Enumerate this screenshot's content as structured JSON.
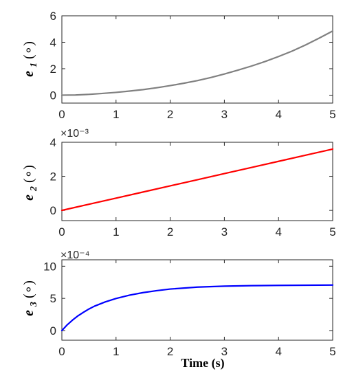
{
  "chart_data": [
    {
      "type": "line",
      "ylabel_main": "e",
      "ylabel_sub": "1",
      "ylabel_unit": "(∘)",
      "xlim": [
        0,
        5
      ],
      "ylim": [
        -0.6,
        6
      ],
      "xticks": [
        "0",
        "1",
        "2",
        "3",
        "4",
        "5"
      ],
      "yticks": [
        "0",
        "2",
        "4",
        "6"
      ],
      "exponent": "",
      "grid": false,
      "series": [
        {
          "color": "#808080",
          "x": [
            0,
            0.25,
            0.5,
            0.75,
            1,
            1.25,
            1.5,
            1.75,
            2,
            2.25,
            2.5,
            2.75,
            3,
            3.25,
            3.5,
            3.75,
            4,
            4.25,
            4.5,
            4.75,
            5
          ],
          "y": [
            0,
            0.01,
            0.06,
            0.13,
            0.21,
            0.31,
            0.42,
            0.56,
            0.72,
            0.9,
            1.1,
            1.33,
            1.6,
            1.89,
            2.2,
            2.54,
            2.92,
            3.33,
            3.8,
            4.31,
            4.85
          ]
        }
      ]
    },
    {
      "type": "line",
      "ylabel_main": "e",
      "ylabel_sub": "2",
      "ylabel_unit": "(∘)",
      "xlim": [
        0,
        5
      ],
      "ylim": [
        -0.6,
        4
      ],
      "xticks": [
        "0",
        "1",
        "2",
        "3",
        "4",
        "5"
      ],
      "yticks": [
        "0",
        "2",
        "4"
      ],
      "exponent": "×10⁻³",
      "grid": false,
      "series": [
        {
          "color": "#ff0000",
          "x": [
            0,
            0.5,
            1,
            1.5,
            2,
            2.5,
            3,
            3.5,
            4,
            4.5,
            5
          ],
          "y": [
            0,
            0.36,
            0.72,
            1.08,
            1.44,
            1.8,
            2.16,
            2.52,
            2.88,
            3.24,
            3.6
          ]
        }
      ]
    },
    {
      "type": "line",
      "ylabel_main": "e",
      "ylabel_sub": "3",
      "ylabel_unit": "(∘)",
      "xlim": [
        0,
        5
      ],
      "ylim": [
        -1.5,
        11
      ],
      "xticks": [
        "0",
        "1",
        "2",
        "3",
        "4",
        "5"
      ],
      "yticks": [
        "0",
        "5",
        "10"
      ],
      "exponent": "×10⁻⁴",
      "xlabel": "Time (s)",
      "grid": false,
      "series": [
        {
          "color": "#0000ff",
          "x": [
            0,
            0.1,
            0.2,
            0.3,
            0.4,
            0.5,
            0.6,
            0.8,
            1,
            1.25,
            1.5,
            1.75,
            2,
            2.5,
            3,
            3.5,
            4,
            4.5,
            5
          ],
          "y": [
            0,
            0.9,
            1.65,
            2.3,
            2.85,
            3.35,
            3.78,
            4.45,
            4.98,
            5.5,
            5.9,
            6.2,
            6.45,
            6.75,
            6.9,
            6.98,
            7.02,
            7.05,
            7.07
          ]
        }
      ]
    }
  ]
}
